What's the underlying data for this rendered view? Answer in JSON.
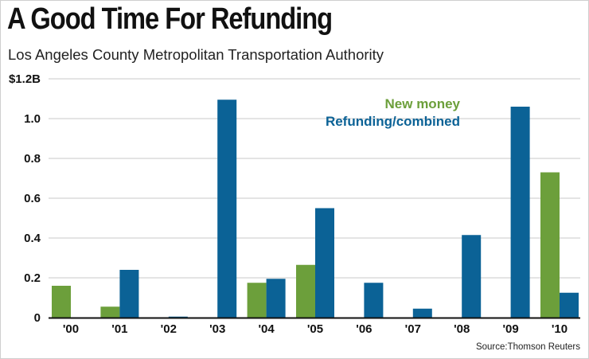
{
  "header": {
    "title": "A Good Time For Refunding",
    "subtitle": "Los Angeles County Metropolitan Transportation Authority"
  },
  "source": "Source:Thomson Reuters",
  "colors": {
    "new_money": "#6c9f3b",
    "refunding": "#0b6296",
    "grid": "#c8c8c8",
    "axis": "#111111"
  },
  "chart_data": {
    "type": "bar",
    "title": "A Good Time For Refunding",
    "xlabel": "",
    "ylabel": "",
    "categories": [
      "'00",
      "'01",
      "'02",
      "'03",
      "'04",
      "'05",
      "'06",
      "'07",
      "'08",
      "'09",
      "'10"
    ],
    "series": [
      {
        "name": "New money",
        "color": "#6c9f3b",
        "values": [
          0.16,
          0.055,
          0,
          0,
          0.175,
          0.265,
          0,
          0,
          0,
          0,
          0.73
        ]
      },
      {
        "name": "Refunding/combined",
        "color": "#0b6296",
        "values": [
          0,
          0.24,
          0.005,
          1.095,
          0.195,
          0.55,
          0.175,
          0.045,
          0.415,
          1.06,
          0.125
        ]
      }
    ],
    "yticks": [
      "0",
      "0.2",
      "0.4",
      "0.6",
      "0.8",
      "1.0",
      "$1.2B"
    ],
    "ylim": [
      0,
      1.2
    ],
    "grid": true,
    "legend": [
      "New money",
      "Refunding/combined"
    ],
    "legend_position": "top-right"
  }
}
